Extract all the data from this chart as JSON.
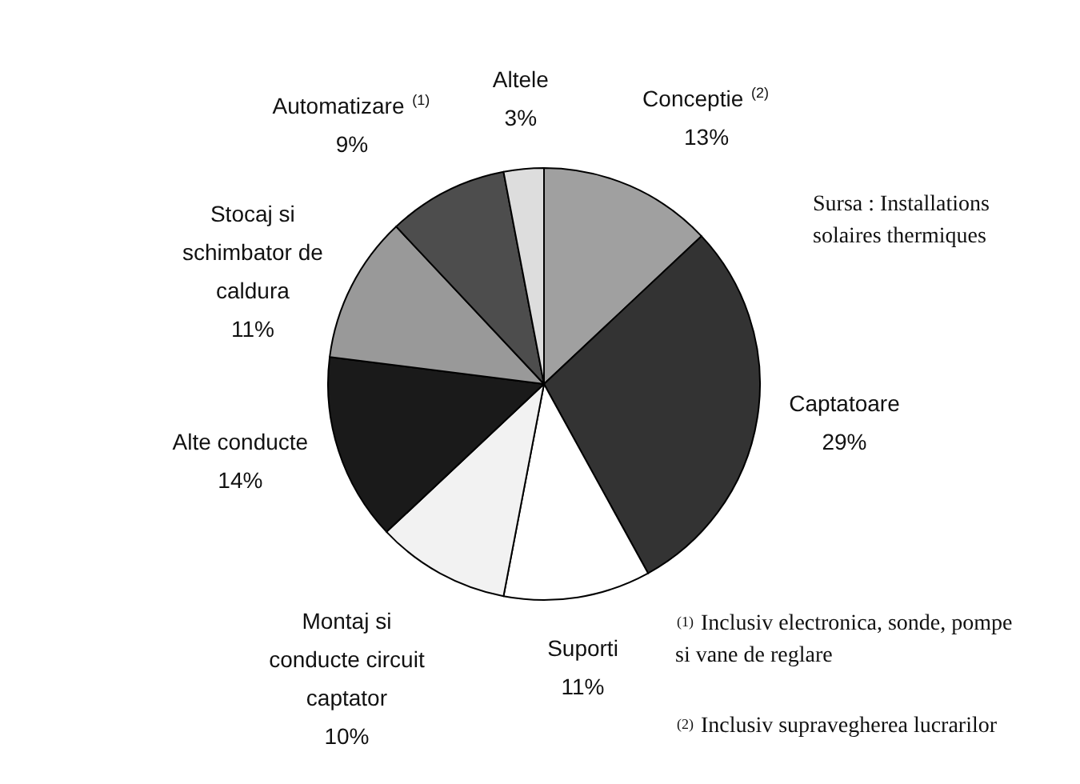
{
  "chart_data": {
    "type": "pie",
    "categories": [
      "Conceptie $^{(2)}$",
      "Captatoare",
      "Suporti",
      "Montaj si conducte circuit captator",
      "Alte conducte",
      "Stocaj si schimbator de caldura",
      "Automatizare $^{(1)}$",
      "Altele"
    ],
    "values": [
      13,
      29,
      11,
      10,
      14,
      11,
      9,
      3
    ],
    "value_labels": [
      "13%",
      "29%",
      "11%",
      "10%",
      "14%",
      "11%",
      "9%",
      "3%"
    ],
    "colors": [
      "#a0a0a0",
      "#333333",
      "#ffffff",
      "#f2f2f2",
      "#1a1a1a",
      "#999999",
      "#4d4d4d",
      "#dddddd"
    ],
    "annotations": [
      "Sursa : Installations solaires thermiques",
      "$^{(1)}$ Inclusiv electronica, sonde, pompe si vane de reglare",
      "$^{(2)}$ Inclusiv supravegherea lucrarilor"
    ]
  }
}
